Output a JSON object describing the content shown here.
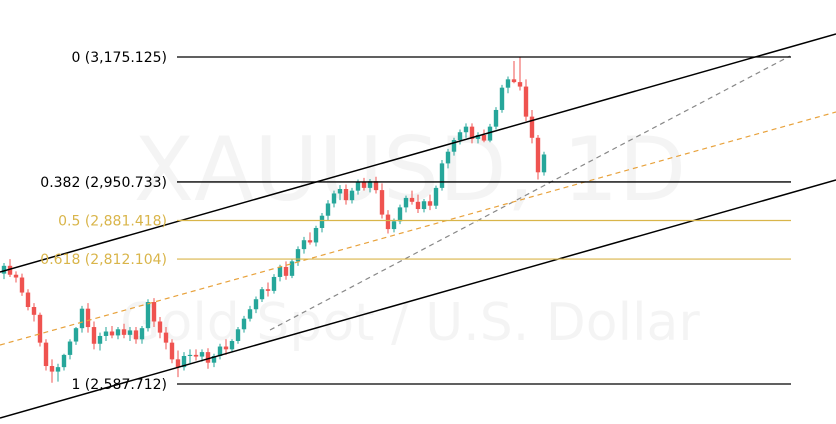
{
  "watermark": {
    "symbol": "XAUUSD, 1D",
    "description": "Gold Spot / U.S. Dollar"
  },
  "colors": {
    "up": "#26a69a",
    "down": "#ef5350",
    "fib_main": "#000000",
    "fib_mid": "#d9b54a",
    "channel": "#000000",
    "dashed_trend": "#888888",
    "dashed_orange": "#e8a23c"
  },
  "chart_data": {
    "type": "candlestick",
    "title": "",
    "symbol": "XAUUSD",
    "timeframe": "1D",
    "y_range": [
      2540,
      3220
    ],
    "fib_levels": [
      {
        "ratio": 0,
        "price": 3175.125,
        "label": "0 (3,175.125)",
        "style": "main"
      },
      {
        "ratio": 0.382,
        "price": 2950.733,
        "label": "0.382 (2,950.733)",
        "style": "main"
      },
      {
        "ratio": 0.5,
        "price": 2881.418,
        "label": "0.5 (2,881.418)",
        "style": "mid"
      },
      {
        "ratio": 0.618,
        "price": 2812.104,
        "label": "0.618 (2,812.104)",
        "style": "mid"
      },
      {
        "ratio": 1,
        "price": 2587.712,
        "label": "1 (2,587.712)",
        "style": "main"
      }
    ],
    "candles": [
      [
        2786,
        2805,
        2776,
        2800
      ],
      [
        2800,
        2812,
        2780,
        2784
      ],
      [
        2784,
        2790,
        2770,
        2779
      ],
      [
        2779,
        2786,
        2746,
        2752
      ],
      [
        2752,
        2758,
        2720,
        2726
      ],
      [
        2726,
        2733,
        2700,
        2712
      ],
      [
        2712,
        2716,
        2655,
        2662
      ],
      [
        2662,
        2668,
        2612,
        2620
      ],
      [
        2620,
        2632,
        2590,
        2610
      ],
      [
        2610,
        2624,
        2592,
        2618
      ],
      [
        2618,
        2642,
        2612,
        2640
      ],
      [
        2640,
        2668,
        2632,
        2664
      ],
      [
        2664,
        2690,
        2658,
        2688
      ],
      [
        2688,
        2728,
        2680,
        2723
      ],
      [
        2723,
        2733,
        2680,
        2690
      ],
      [
        2690,
        2700,
        2650,
        2660
      ],
      [
        2660,
        2680,
        2648,
        2674
      ],
      [
        2674,
        2690,
        2665,
        2682
      ],
      [
        2682,
        2692,
        2670,
        2675
      ],
      [
        2675,
        2690,
        2668,
        2686
      ],
      [
        2686,
        2696,
        2670,
        2676
      ],
      [
        2676,
        2690,
        2665,
        2684
      ],
      [
        2684,
        2690,
        2660,
        2668
      ],
      [
        2668,
        2692,
        2660,
        2688
      ],
      [
        2688,
        2740,
        2682,
        2735
      ],
      [
        2735,
        2742,
        2690,
        2700
      ],
      [
        2700,
        2708,
        2670,
        2680
      ],
      [
        2680,
        2690,
        2650,
        2662
      ],
      [
        2662,
        2668,
        2625,
        2632
      ],
      [
        2632,
        2648,
        2600,
        2618
      ],
      [
        2618,
        2645,
        2612,
        2638
      ],
      [
        2638,
        2650,
        2625,
        2640
      ],
      [
        2640,
        2650,
        2630,
        2637
      ],
      [
        2637,
        2650,
        2628,
        2645
      ],
      [
        2645,
        2652,
        2615,
        2626
      ],
      [
        2626,
        2642,
        2618,
        2638
      ],
      [
        2638,
        2660,
        2632,
        2655
      ],
      [
        2655,
        2668,
        2640,
        2650
      ],
      [
        2650,
        2668,
        2645,
        2665
      ],
      [
        2665,
        2690,
        2660,
        2686
      ],
      [
        2686,
        2710,
        2680,
        2705
      ],
      [
        2705,
        2728,
        2700,
        2722
      ],
      [
        2722,
        2745,
        2715,
        2740
      ],
      [
        2740,
        2762,
        2735,
        2758
      ],
      [
        2758,
        2770,
        2745,
        2755
      ],
      [
        2755,
        2785,
        2750,
        2780
      ],
      [
        2780,
        2802,
        2772,
        2798
      ],
      [
        2798,
        2808,
        2775,
        2782
      ],
      [
        2782,
        2812,
        2778,
        2808
      ],
      [
        2808,
        2835,
        2800,
        2830
      ],
      [
        2830,
        2852,
        2822,
        2846
      ],
      [
        2846,
        2860,
        2838,
        2842
      ],
      [
        2842,
        2872,
        2835,
        2868
      ],
      [
        2868,
        2895,
        2860,
        2890
      ],
      [
        2890,
        2918,
        2882,
        2912
      ],
      [
        2912,
        2935,
        2905,
        2930
      ],
      [
        2930,
        2945,
        2918,
        2938
      ],
      [
        2938,
        2946,
        2910,
        2918
      ],
      [
        2918,
        2940,
        2912,
        2935
      ],
      [
        2935,
        2955,
        2928,
        2950
      ],
      [
        2950,
        2958,
        2935,
        2940
      ],
      [
        2940,
        2956,
        2932,
        2952
      ],
      [
        2952,
        2960,
        2930,
        2936
      ],
      [
        2936,
        2948,
        2885,
        2892
      ],
      [
        2892,
        2900,
        2858,
        2866
      ],
      [
        2866,
        2885,
        2860,
        2880
      ],
      [
        2880,
        2910,
        2875,
        2905
      ],
      [
        2905,
        2926,
        2896,
        2922
      ],
      [
        2922,
        2935,
        2910,
        2915
      ],
      [
        2915,
        2928,
        2895,
        2902
      ],
      [
        2902,
        2920,
        2896,
        2916
      ],
      [
        2916,
        2928,
        2900,
        2908
      ],
      [
        2908,
        2944,
        2902,
        2940
      ],
      [
        2940,
        2990,
        2935,
        2984
      ],
      [
        2984,
        3010,
        2975,
        3005
      ],
      [
        3005,
        3030,
        2998,
        3026
      ],
      [
        3026,
        3045,
        3018,
        3040
      ],
      [
        3040,
        3056,
        3030,
        3050
      ],
      [
        3050,
        3056,
        3020,
        3028
      ],
      [
        3028,
        3040,
        3020,
        3035
      ],
      [
        3035,
        3045,
        3022,
        3025
      ],
      [
        3025,
        3055,
        3022,
        3050
      ],
      [
        3050,
        3085,
        3045,
        3080
      ],
      [
        3080,
        3125,
        3075,
        3120
      ],
      [
        3120,
        3140,
        3110,
        3135
      ],
      [
        3135,
        3168,
        3128,
        3130
      ],
      [
        3130,
        3175,
        3115,
        3122
      ],
      [
        3122,
        3135,
        3060,
        3068
      ],
      [
        3068,
        3080,
        3020,
        3030
      ],
      [
        3030,
        3035,
        2955,
        2968
      ],
      [
        2968,
        3005,
        2962,
        3000
      ]
    ]
  }
}
